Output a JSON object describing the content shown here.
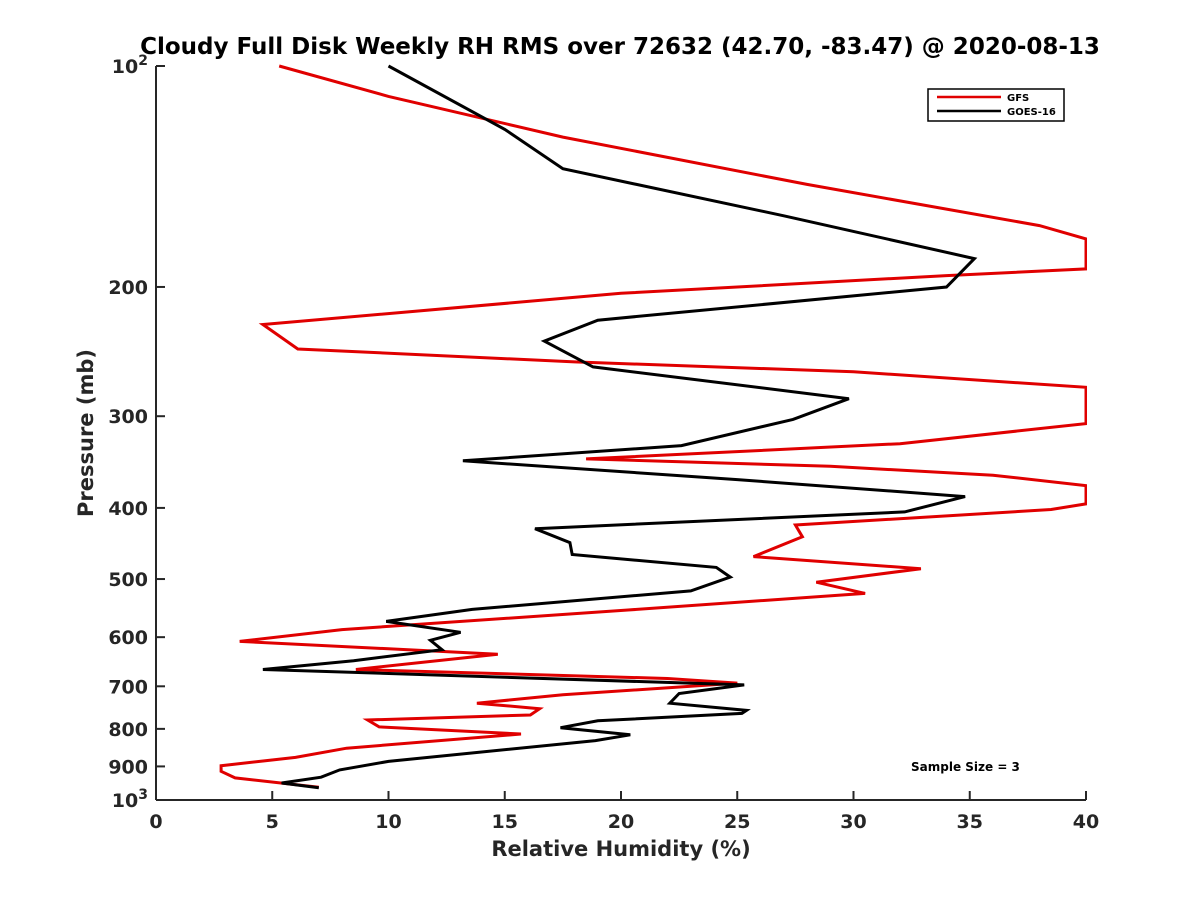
{
  "chart_data": {
    "type": "line",
    "title": "Cloudy Full Disk Weekly RH RMS over 72632 (42.70, -83.47) @ 2020-08-13",
    "xlabel": "Relative Humidity (%)",
    "ylabel": "Pressure (mb)",
    "xlim": [
      0,
      40
    ],
    "ylim": [
      100,
      1000
    ],
    "yscale": "log",
    "y_reversed": true,
    "x_ticks": [
      "0",
      "5",
      "10",
      "15",
      "20",
      "25",
      "30",
      "35",
      "40"
    ],
    "y_ticks": [
      {
        "value": 100,
        "base": "10",
        "exp": "2"
      },
      {
        "value": 200,
        "label": "200"
      },
      {
        "value": 300,
        "label": "300"
      },
      {
        "value": 400,
        "label": "400"
      },
      {
        "value": 500,
        "label": "500"
      },
      {
        "value": 600,
        "label": "600"
      },
      {
        "value": 700,
        "label": "700"
      },
      {
        "value": 800,
        "label": "800"
      },
      {
        "value": 900,
        "label": "900"
      },
      {
        "value": 1000,
        "base": "10",
        "exp": "3"
      }
    ],
    "legend_position": "top-right",
    "annotation": "Sample Size = 3",
    "series": [
      {
        "name": "GFS",
        "color": "#e00000",
        "points": [
          [
            5.3,
            100
          ],
          [
            10,
            110
          ],
          [
            17.5,
            125
          ],
          [
            28,
            145
          ],
          [
            38,
            165
          ],
          [
            40,
            172
          ],
          [
            40,
            189
          ],
          [
            34,
            193
          ],
          [
            20,
            204
          ],
          [
            4.6,
            225
          ],
          [
            6.1,
            243
          ],
          [
            18,
            253
          ],
          [
            30,
            261
          ],
          [
            40,
            274
          ],
          [
            40,
            307
          ],
          [
            32,
            327
          ],
          [
            18.5,
            343
          ],
          [
            29,
            351
          ],
          [
            36,
            361
          ],
          [
            40,
            373
          ],
          [
            40,
            395
          ],
          [
            38.5,
            402
          ],
          [
            27.5,
            422
          ],
          [
            27.8,
            438
          ],
          [
            25.7,
            466
          ],
          [
            32.9,
            484
          ],
          [
            28.4,
            505
          ],
          [
            30.5,
            523
          ],
          [
            20.3,
            551
          ],
          [
            8,
            586
          ],
          [
            3.6,
            608
          ],
          [
            14.7,
            633
          ],
          [
            8.6,
            664
          ],
          [
            22,
            683
          ],
          [
            25,
            693
          ],
          [
            17.5,
            719
          ],
          [
            13.8,
            738
          ],
          [
            16.5,
            751
          ],
          [
            16.1,
            766
          ],
          [
            9.1,
            778
          ],
          [
            9.6,
            795
          ],
          [
            15.7,
            813
          ],
          [
            8.2,
            850
          ],
          [
            6,
            875
          ],
          [
            2.8,
            898
          ],
          [
            2.8,
            914
          ],
          [
            3.4,
            933
          ],
          [
            7,
            961
          ]
        ]
      },
      {
        "name": "GOES-16",
        "color": "#000000",
        "points": [
          [
            10,
            100
          ],
          [
            15,
            122
          ],
          [
            17.5,
            138
          ],
          [
            27,
            160
          ],
          [
            35.2,
            183
          ],
          [
            34,
            200
          ],
          [
            19,
            222
          ],
          [
            16.7,
            237
          ],
          [
            18.8,
            257
          ],
          [
            29.8,
            284
          ],
          [
            27.4,
            303
          ],
          [
            22.6,
            329
          ],
          [
            13.2,
            345
          ],
          [
            25,
            366
          ],
          [
            34.8,
            386
          ],
          [
            32.2,
            405
          ],
          [
            16.3,
            427
          ],
          [
            17.8,
            446
          ],
          [
            17.9,
            463
          ],
          [
            24.1,
            482
          ],
          [
            24.7,
            497
          ],
          [
            23,
            519
          ],
          [
            13.6,
            550
          ],
          [
            9.9,
            571
          ],
          [
            13.1,
            591
          ],
          [
            11.8,
            606
          ],
          [
            12.3,
            624
          ],
          [
            8.5,
            646
          ],
          [
            4.6,
            664
          ],
          [
            25.3,
            697
          ],
          [
            22.5,
            716
          ],
          [
            22.1,
            738
          ],
          [
            25.4,
            755
          ],
          [
            25.2,
            762
          ],
          [
            19,
            780
          ],
          [
            17.4,
            797
          ],
          [
            20.4,
            815
          ],
          [
            18.9,
            830
          ],
          [
            10,
            886
          ],
          [
            7.9,
            910
          ],
          [
            7.1,
            931
          ],
          [
            5.4,
            948
          ],
          [
            7,
            962
          ]
        ]
      }
    ]
  }
}
